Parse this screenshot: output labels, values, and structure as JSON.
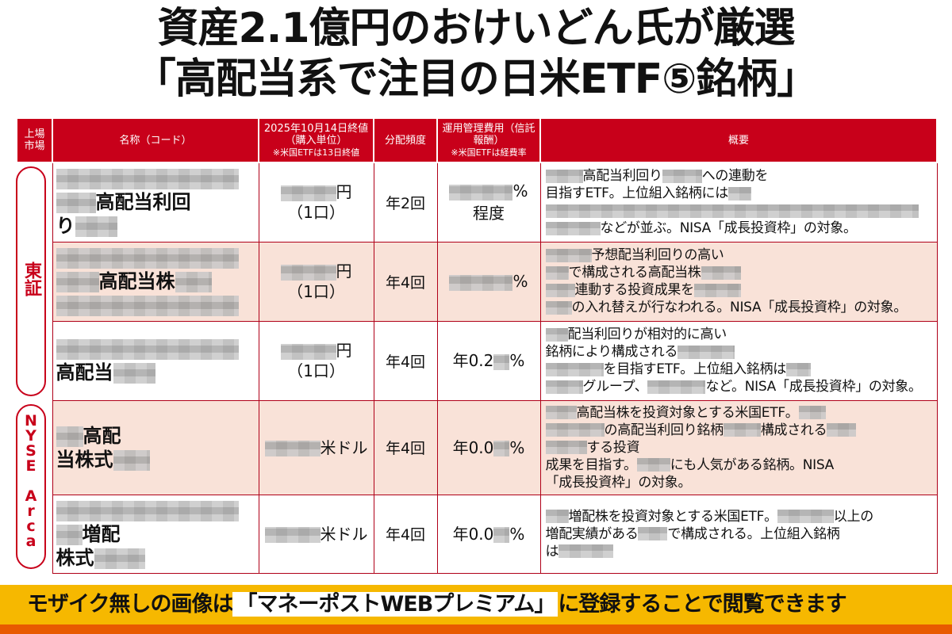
{
  "title": {
    "line1": "資産2.1億円のおけいどん氏が厳選",
    "line2": "「高配当系で注目の日米ETF⑤銘柄」"
  },
  "header": {
    "market": "上場市場",
    "name": "名称（コード）",
    "price": "2025年10月14日終値（購入単位）",
    "price_note": "※米国ETFは13日終値",
    "freq": "分配頻度",
    "fee": "運用管理費用（信託報酬）",
    "fee_note": "※米国ETFは経費率",
    "summary": "概要"
  },
  "markets": [
    "東証",
    "NYSE Arca"
  ],
  "rows": [
    {
      "name": [
        [
          null
        ],
        [
          null,
          "高配当利回"
        ],
        [
          "り",
          null
        ]
      ],
      "price": [
        [
          null,
          "円"
        ],
        [
          "（1口）"
        ]
      ],
      "freq": "年2回",
      "fee": [
        [
          null,
          "%"
        ],
        [
          "程度"
        ]
      ],
      "summary": [
        [
          null,
          "高配当利回り",
          null,
          "への連動を"
        ],
        [
          "目指すETF。上位組入銘柄には",
          null
        ],
        [
          null
        ],
        [
          null,
          "などが並ぶ。NISA「成長投資枠」の対象。"
        ]
      ]
    },
    {
      "name": [
        [
          null
        ],
        [
          null,
          "高配当株",
          null
        ],
        [
          null
        ]
      ],
      "price": [
        [
          null,
          "円"
        ],
        [
          "（1口）"
        ]
      ],
      "freq": "年4回",
      "fee": [
        [
          null,
          "%"
        ]
      ],
      "summary": [
        [
          null,
          "予想配当利回りの高い"
        ],
        [
          null,
          "で構成される高配当株",
          null
        ],
        [
          null,
          "連動する投資成果を",
          null
        ],
        [
          null,
          "の入れ替えが行なわれる。NISA「成長投資枠」の対象。"
        ]
      ]
    },
    {
      "name": [
        [
          null
        ],
        [
          "高配当",
          null
        ]
      ],
      "price": [
        [
          null,
          "円"
        ],
        [
          "（1口）"
        ]
      ],
      "freq": "年4回",
      "fee": [
        [
          "年0.2",
          null,
          "%"
        ]
      ],
      "summary": [
        [
          null,
          "配当利回りが相対的に高い"
        ],
        [
          "銘柄により構成される",
          null
        ],
        [
          null,
          "を目指すETF。上位組入銘柄は",
          null
        ],
        [
          null,
          "グループ、",
          null,
          "など。NISA「成長投資枠」の対象。"
        ]
      ]
    },
    {
      "name": [
        [
          null,
          "高配"
        ],
        [
          "当株式",
          null
        ]
      ],
      "price": [
        [
          null,
          "米ドル"
        ]
      ],
      "freq": "年4回",
      "fee": [
        [
          "年0.0",
          null,
          "%"
        ]
      ],
      "summary": [
        [
          null,
          "高配当株を投資対象とする米国ETF。",
          null
        ],
        [
          null,
          "の高配当利回り銘柄",
          null,
          "構成される",
          null
        ],
        [
          null,
          "する投資"
        ],
        [
          "成果を目指す。",
          null,
          "にも人気がある銘柄。NISA"
        ],
        [
          "「成長投資枠」の対象。"
        ]
      ]
    },
    {
      "name": [
        [
          null
        ],
        [
          null,
          "増配"
        ],
        [
          "株式",
          null
        ]
      ],
      "price": [
        [
          null,
          "米ドル"
        ]
      ],
      "freq": "年4回",
      "fee": [
        [
          "年0.0",
          null,
          "%"
        ]
      ],
      "summary": [
        [
          null,
          "増配株を投資対象とする米国ETF。",
          null,
          "以上の"
        ],
        [
          "増配実績がある",
          null,
          "で構成される。上位組入銘柄"
        ],
        [
          "は",
          null
        ]
      ]
    }
  ],
  "banner": {
    "pre": "モザイク無しの画像は",
    "highlight": "「マネーポストWEBプレミアム」",
    "post": "に登録することで閲覧できます"
  },
  "colors": {
    "accent": "#c8001a",
    "row_pink": "#f9e2d8",
    "banner": "#f6b800"
  }
}
